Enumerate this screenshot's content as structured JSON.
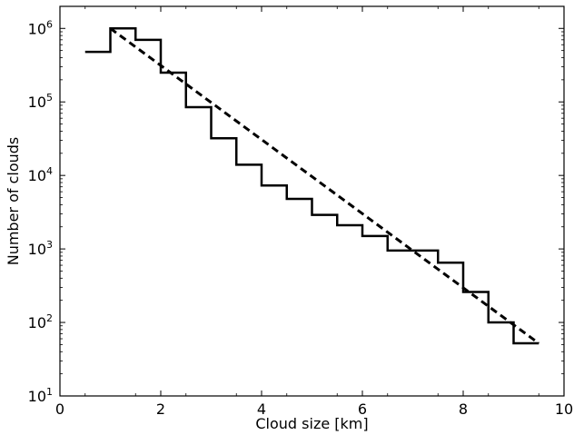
{
  "chart_data": {
    "type": "line",
    "title": "",
    "xlabel": "Cloud size [km]",
    "ylabel": "Number of clouds",
    "xlim": [
      0,
      10
    ],
    "ylim_log10": [
      1,
      6.3
    ],
    "y_scale": "log",
    "grid": false,
    "x_ticks": [
      {
        "value": 0,
        "label": "0"
      },
      {
        "value": 2,
        "label": "2"
      },
      {
        "value": 4,
        "label": "4"
      },
      {
        "value": 6,
        "label": "6"
      },
      {
        "value": 8,
        "label": "8"
      },
      {
        "value": 10,
        "label": "10"
      }
    ],
    "y_ticks": [
      {
        "value": 10,
        "base": "10",
        "exp": "1"
      },
      {
        "value": 100,
        "base": "10",
        "exp": "2"
      },
      {
        "value": 1000,
        "base": "10",
        "exp": "3"
      },
      {
        "value": 10000,
        "base": "10",
        "exp": "4"
      },
      {
        "value": 100000,
        "base": "10",
        "exp": "5"
      },
      {
        "value": 1000000,
        "base": "10",
        "exp": "6"
      }
    ],
    "series": [
      {
        "style": "step",
        "bin_width": 0.5,
        "x": [
          0.75,
          1.25,
          1.75,
          2.25,
          2.75,
          3.25,
          3.75,
          4.25,
          4.75,
          5.25,
          5.75,
          6.25,
          6.75,
          7.25,
          7.75,
          8.25,
          8.75,
          9.25
        ],
        "y": [
          480000,
          1000000,
          700000,
          250000,
          85000,
          32000,
          14000,
          7300,
          4800,
          2900,
          2100,
          1500,
          950,
          950,
          650,
          260,
          100,
          52
        ]
      },
      {
        "style": "dashed",
        "x": [
          1.0,
          9.5
        ],
        "y": [
          1000000,
          52
        ]
      }
    ]
  }
}
